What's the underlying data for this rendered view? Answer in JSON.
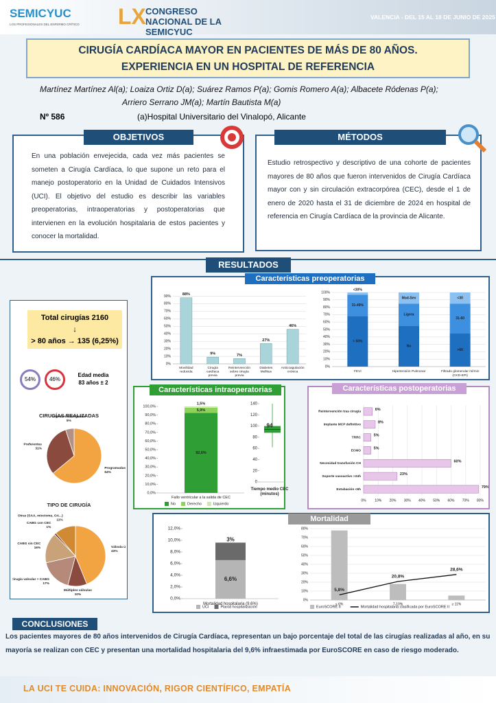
{
  "header": {
    "logo": "SEMICYUC",
    "logo_sub": "LOS PROFESIONALES DEL ENFERMO CRÍTICO",
    "edition": "LX",
    "congress": "CONGRESO NACIONAL DE LA SEMICYUC",
    "venue": "VALENCIA - DEL 15 AL 18 DE JUNIO DE 2025"
  },
  "title": [
    "CIRUGÍA CARDÍACA MAYOR EN PACIENTES DE MÁS DE 80 AÑOS.",
    "EXPERIENCIA EN UN HOSPITAL DE REFERENCIA"
  ],
  "authors": [
    "Martínez Martínez Al(a); Loaiza Ortiz D(a); Suárez Ramos P(a); Gomis Romero A(a); Albacete Ródenas P(a);",
    "Arriero Serrano JM(a); Martín Bautista M(a)"
  ],
  "number": "Nº 586",
  "affiliation": "(a)Hospital Universitario del Vinalopó, Alicante",
  "objetivos": {
    "heading": "OBJETIVOS",
    "text": "En una población envejecida, cada vez más pacientes se someten a Cirugía Cardíaca, lo que supone un reto para el manejo postoperatorio en la Unidad de Cuidados Intensivos (UCI). El objetivo del estudio es describir las variables preoperatorias, intraoperatorias y postoperatorias que intervienen en la evolución hospitalaria de estos pacientes y conocer la mortalidad."
  },
  "metodos": {
    "heading": "MÉTODOS",
    "text": "Estudio retrospectivo y descriptivo de una cohorte de pacientes mayores de 80 años que fueron intervenidos de Cirugía Cardíaca mayor con y sin circulación extracorpórea (CEC), desde el 1 de enero de 2020 hasta el 31 de diciembre de 2024 en hospital de referencia en Cirugía Cardíaca de la provincia de Alicante."
  },
  "resultados": "RESULTADOS",
  "left_panel": {
    "total": "Total cirugías 2160",
    "arrow": "↓",
    "over80": "> 80 años → 135 (6,25%)",
    "male": "54%",
    "female": "46%",
    "age": "Edad media 83 años ± 2"
  },
  "conclusiones": {
    "heading": "CONCLUSIONES",
    "text": "Los pacientes mayores de 80 años intervenidos de Cirugía Cardíaca, representan un bajo porcentaje del total de las cirugías realizadas al año, en su mayoría se realizan con CEC y presentan una mortalidad hospitalaria del 9,6% infraestimada por EuroSCORE en caso de riesgo moderado."
  },
  "footer": "LA UCI TE CUIDA: INNOVACIÓN, RIGOR CIENTÍFICO, EMPATÍA",
  "chart_data": [
    {
      "type": "pie",
      "title": "CIRUGÍAS REALIZADAS",
      "categories": [
        "Programadas",
        "Preferentes",
        "Urgentes-Emergentes"
      ],
      "values": [
        64,
        31,
        5
      ],
      "value_labels": [
        "64%",
        "31%",
        "5%"
      ],
      "colors": [
        "#f2a443",
        "#8a4b3e",
        "#b39187"
      ]
    },
    {
      "type": "pie",
      "title": "TIPO DE CIRUGÍA",
      "categories": [
        "Válvula única",
        "Múltiples válvulas",
        "Cirugía valvular + CABG",
        "CABG sin CEC",
        "CABG con CEC",
        "Otras (SAA, mixcioma, OA...)"
      ],
      "values": [
        43,
        10,
        17,
        16,
        1,
        11
      ],
      "value_labels": [
        "43%",
        "10%",
        "17%",
        "16%",
        "1%",
        "11%"
      ],
      "colors": [
        "#f2a443",
        "#8a4b3e",
        "#b58a7a",
        "#c9a27a",
        "#6b3a2e",
        "#d08a34"
      ]
    },
    {
      "type": "bar",
      "title": "Características preoperatorias",
      "categories": [
        "Movilidad reducida",
        "Cirugía cardíaca previa",
        "Reintervención sobre cirugía previa",
        "Diabetes Mellitus",
        "Anticoagulación crónica"
      ],
      "values": [
        88,
        9,
        7,
        27,
        46
      ],
      "value_labels": [
        "88%",
        "9%",
        "7%",
        "27%",
        "46%"
      ],
      "color": "#a9d4d9",
      "ylim": [
        0,
        95
      ],
      "grid": true,
      "yticks": [
        {
          "value": 0,
          "label": "0%"
        },
        {
          "value": 10,
          "label": "10%"
        },
        {
          "value": 20,
          "label": "20%"
        },
        {
          "value": 30,
          "label": "30%"
        },
        {
          "value": 40,
          "label": "40%"
        },
        {
          "value": 50,
          "label": "50%"
        },
        {
          "value": 60,
          "label": "60%"
        },
        {
          "value": 70,
          "label": "70%"
        },
        {
          "value": 80,
          "label": "80%"
        },
        {
          "value": 90,
          "label": "90%"
        }
      ]
    },
    {
      "type": "stacked",
      "categories": [
        "FEVI",
        "Hipertensión Pulmonar",
        "Filtrado glomerular ml/min (CKD-EPI)"
      ],
      "ylim": [
        0,
        100
      ],
      "grid": true,
      "series": [
        {
          "values": [
            68,
            55,
            45
          ],
          "value_labels": [
            "> 50%",
            "No",
            ">60"
          ],
          "color": "#1f6fc0"
        },
        {
          "values": [
            29,
            30,
            40
          ],
          "value_labels": [
            "31-49%",
            "Ligera",
            "31-60"
          ],
          "color": "#3d8fe0"
        },
        {
          "values": [
            3,
            15,
            15
          ],
          "value_labels": [
            "<30%",
            "Mod-Sev",
            "<30"
          ],
          "color": "#8cc0f0"
        }
      ],
      "yticks": [
        {
          "value": 0,
          "label": "0%"
        },
        {
          "value": 10,
          "label": "10%"
        },
        {
          "value": 20,
          "label": "20%"
        },
        {
          "value": 30,
          "label": "30%"
        },
        {
          "value": 40,
          "label": "40%"
        },
        {
          "value": 50,
          "label": "50%"
        },
        {
          "value": 60,
          "label": "60%"
        },
        {
          "value": 70,
          "label": "70%"
        },
        {
          "value": 80,
          "label": "80%"
        },
        {
          "value": 90,
          "label": "90%"
        },
        {
          "value": 100,
          "label": "100%"
        }
      ]
    },
    {
      "type": "stacked",
      "title": "Características intraoperatorias",
      "categories": [
        "Fallo ventricular a la salida de CEC"
      ],
      "ylim": [
        0,
        100
      ],
      "grid": false,
      "legend": "bottom",
      "series": [
        {
          "name": "No",
          "values": [
            92.6
          ],
          "value_labels": [
            "92,6%"
          ],
          "color": "#2f9e35"
        },
        {
          "name": "Derecho",
          "values": [
            5.9
          ],
          "value_labels": [
            "5,9%"
          ],
          "color": "#8fd35a"
        },
        {
          "name": "Izquierdo",
          "values": [
            1.5
          ],
          "value_labels": [
            "1,5%"
          ],
          "color": "#cde8b4"
        }
      ],
      "yticks": [
        {
          "value": 0,
          "label": "0,0%"
        },
        {
          "value": 10,
          "label": "10,0%"
        },
        {
          "value": 20,
          "label": "20,0%"
        },
        {
          "value": 30,
          "label": "30,0%"
        },
        {
          "value": 40,
          "label": "40,0%"
        },
        {
          "value": 50,
          "label": "50,0%"
        },
        {
          "value": 60,
          "label": "60,0%"
        },
        {
          "value": 70,
          "label": "70,0%"
        },
        {
          "value": 80,
          "label": "80,0%"
        },
        {
          "value": 90,
          "label": "90,0%"
        },
        {
          "value": 100,
          "label": "100,0%"
        }
      ]
    },
    {
      "type": "box",
      "categories": [
        "Tiempo medio CEC (minutos)"
      ],
      "box": {
        "min": 62,
        "q1": 88,
        "median": 94,
        "q3": 100,
        "max": 140
      },
      "color": "#2f9e35",
      "ylim": [
        0,
        140
      ],
      "yticks": [
        0,
        20,
        40,
        60,
        80,
        100,
        120,
        140
      ],
      "grid": false
    },
    {
      "type": "hbar",
      "title": "Características postoperatorias",
      "categories": [
        "Reintervención tras cirugía",
        "Implante MCP definitivo",
        "TRRC",
        "ECMO",
        "Necesidad transfusión CH",
        "Soporte vasoactivo >24h",
        "Extubación <6h"
      ],
      "values": [
        6,
        8,
        5,
        5,
        60,
        23,
        79
      ],
      "value_labels": [
        "6%",
        "8%",
        "5%",
        "5%",
        "60%",
        "23%",
        "79%"
      ],
      "color": "#e8c6ea",
      "xlim": [
        0,
        80
      ],
      "grid": true,
      "xticks": [
        {
          "value": 0,
          "label": "0%"
        },
        {
          "value": 10,
          "label": "10%"
        },
        {
          "value": 20,
          "label": "20%"
        },
        {
          "value": 30,
          "label": "30%"
        },
        {
          "value": 40,
          "label": "40%"
        },
        {
          "value": 50,
          "label": "50%"
        },
        {
          "value": 60,
          "label": "60%"
        },
        {
          "value": 70,
          "label": "70%"
        },
        {
          "value": 80,
          "label": "80%"
        }
      ]
    },
    {
      "type": "stacked",
      "title": "Mortalidad",
      "categories": [
        "Mortalidad hospitalaria (9,6%)"
      ],
      "ylim": [
        0,
        12
      ],
      "grid": false,
      "legend": "bottom",
      "series": [
        {
          "name": "UCI",
          "values": [
            6.6
          ],
          "value_labels": [
            "6,6%"
          ],
          "color": "#b5b5b5"
        },
        {
          "name": "Planta hospitalización",
          "values": [
            3
          ],
          "value_labels": [
            "3%"
          ],
          "color": "#6a6a6a"
        }
      ],
      "yticks": [
        {
          "value": 0,
          "label": "0,0%"
        },
        {
          "value": 2,
          "label": "2,0%"
        },
        {
          "value": 4,
          "label": "4,0%"
        },
        {
          "value": 6,
          "label": "6,0%"
        },
        {
          "value": 8,
          "label": "8,0%"
        },
        {
          "value": 10,
          "label": "10,0%"
        },
        {
          "value": 12,
          "label": "12,0%"
        }
      ]
    },
    {
      "type": "combo",
      "categories": [
        "≤ 6%",
        "7-10%",
        "≥ 11%"
      ],
      "ylim": [
        0,
        80
      ],
      "grid": true,
      "legend": "bottom",
      "series": [
        {
          "name": "EuroSCORE II",
          "kind": "bar",
          "values": [
            78,
            18,
            5
          ],
          "color": "#bdbdbd"
        },
        {
          "name": "Mortalidad hospitalaria clasificada por EuroSCORE II",
          "kind": "line",
          "values": [
            5.8,
            20.8,
            28.6
          ],
          "value_labels": [
            "5,8%",
            "20,8%",
            "28,6%"
          ],
          "color": "#111111"
        }
      ],
      "yticks": [
        {
          "value": 0,
          "label": "0%"
        },
        {
          "value": 10,
          "label": "10%"
        },
        {
          "value": 20,
          "label": "20%"
        },
        {
          "value": 30,
          "label": "30%"
        },
        {
          "value": 40,
          "label": "40%"
        },
        {
          "value": 50,
          "label": "50%"
        },
        {
          "value": 60,
          "label": "60%"
        },
        {
          "value": 70,
          "label": "70%"
        },
        {
          "value": 80,
          "label": "80%"
        }
      ]
    }
  ]
}
